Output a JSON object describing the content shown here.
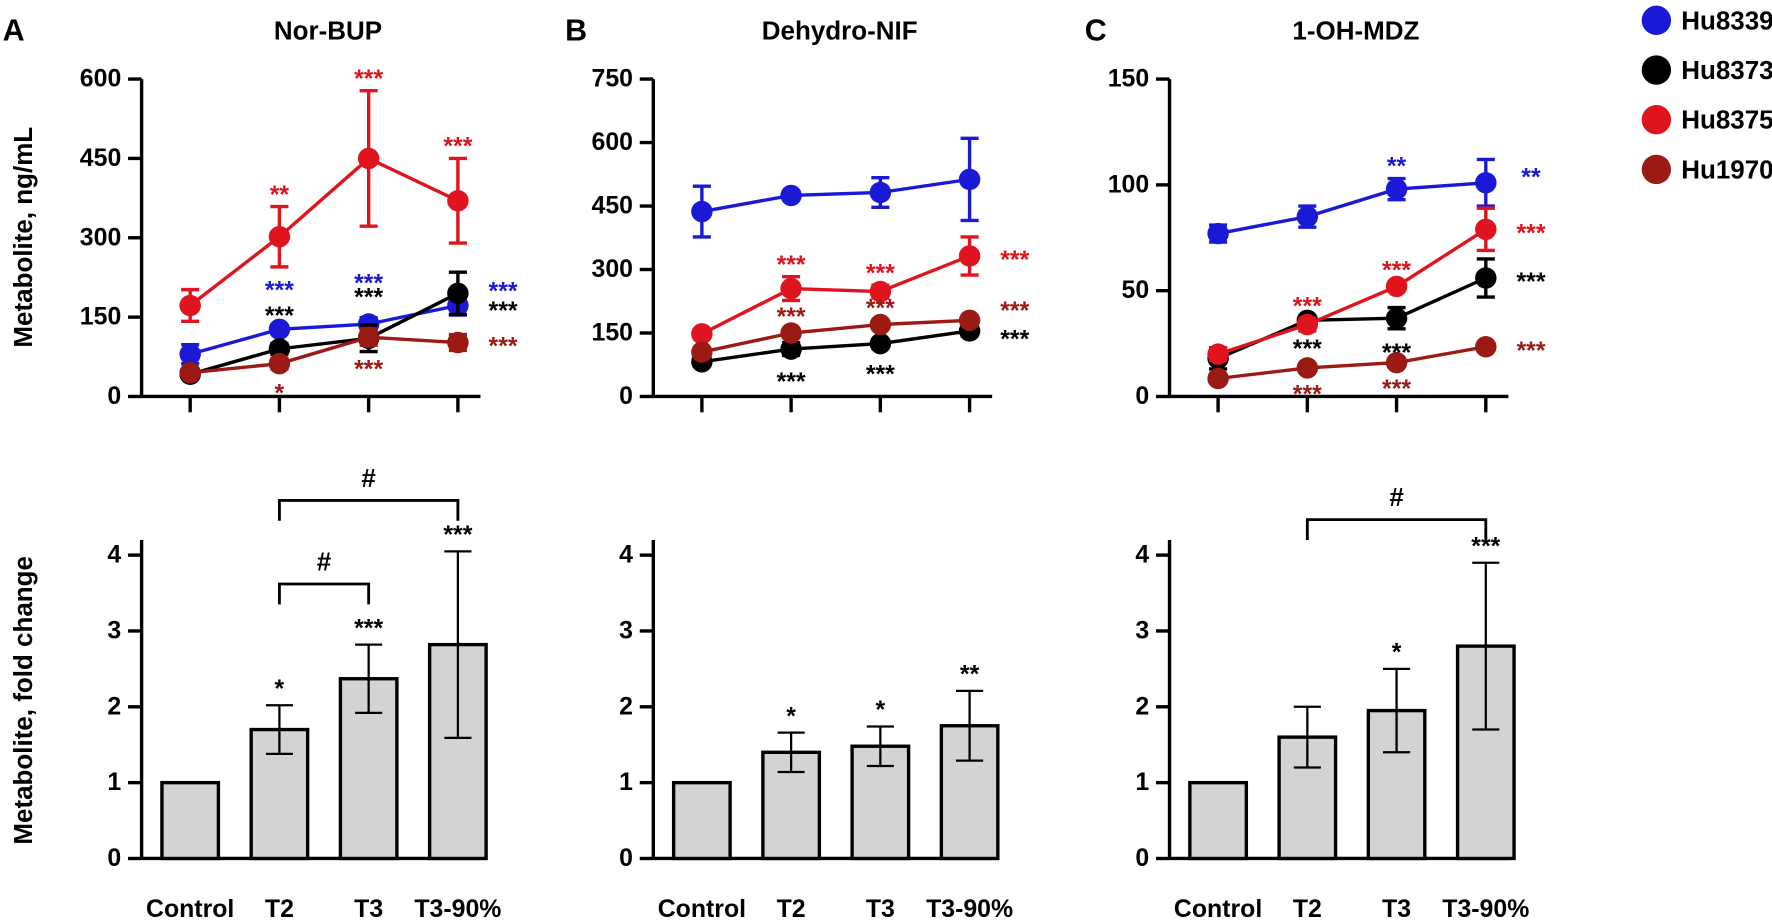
{
  "chart_data": [
    {
      "type": "line",
      "panel_label": "A",
      "title": "Nor-BUP",
      "y_label": "Metabolite, ng/mL",
      "categories": [
        null,
        null,
        null,
        null
      ],
      "ylim": [
        0,
        600
      ],
      "yticks": [
        0,
        150,
        300,
        450,
        600
      ],
      "series": [
        {
          "name": "Hu8339",
          "color": "#1a1ad6",
          "values": [
            80,
            127,
            137,
            172
          ],
          "error": [
            18,
            8,
            12,
            18
          ],
          "annotations": [
            null,
            "***",
            "***",
            "***"
          ]
        },
        {
          "name": "Hu8373",
          "color": "#000000",
          "values": [
            42,
            90,
            110,
            195
          ],
          "error": [
            5,
            10,
            25,
            40
          ],
          "annotations": [
            null,
            "***",
            "***",
            "***"
          ]
        },
        {
          "name": "Hu8375",
          "color": "#e0141e",
          "values": [
            172,
            302,
            450,
            370
          ],
          "error": [
            30,
            57,
            128,
            80
          ],
          "annotations": [
            null,
            "**",
            "***",
            "***"
          ]
        },
        {
          "name": "Hu1970",
          "color": "#9b1a14",
          "values": [
            45,
            62,
            112,
            102
          ],
          "error": [
            5,
            10,
            15,
            15
          ],
          "annotations": [
            null,
            "*",
            "***",
            "***"
          ]
        }
      ]
    },
    {
      "type": "bar",
      "y_label": "Metabolite, fold change",
      "categories": [
        "Control",
        "T2",
        "T3",
        "T3-90%"
      ],
      "ylim": [
        0,
        4.2
      ],
      "yticks": [
        0,
        1,
        2,
        3,
        4
      ],
      "values": [
        1,
        1.7,
        2.37,
        2.82
      ],
      "error": [
        0,
        0.32,
        0.45,
        1.23
      ],
      "color": "#d3d3d3",
      "annotations": [
        null,
        "*",
        "***",
        "***"
      ],
      "brackets": [
        {
          "between": [
            "T2",
            "T3"
          ],
          "label": "#"
        },
        {
          "between": [
            "T2",
            "T3-90%"
          ],
          "label": "#"
        }
      ]
    },
    {
      "type": "line",
      "panel_label": "B",
      "title": "Dehydro-NIF",
      "categories": [
        null,
        null,
        null,
        null
      ],
      "ylim": [
        0,
        750
      ],
      "yticks": [
        0,
        150,
        300,
        450,
        600,
        750
      ],
      "series": [
        {
          "color": "#1a1ad6",
          "values": [
            437,
            475,
            482,
            513
          ],
          "error": [
            60,
            10,
            35,
            97
          ],
          "annotations": [
            null,
            null,
            null,
            null
          ]
        },
        {
          "color": "#000000",
          "values": [
            82,
            112,
            125,
            155
          ],
          "error": [
            8,
            15,
            10,
            12
          ],
          "annotations": [
            null,
            "***",
            "***",
            "***"
          ]
        },
        {
          "color": "#e0141e",
          "values": [
            148,
            255,
            248,
            332
          ],
          "error": [
            10,
            28,
            15,
            45
          ],
          "annotations": [
            null,
            "***",
            "***",
            "***"
          ]
        },
        {
          "color": "#9b1a14",
          "values": [
            105,
            150,
            170,
            180
          ],
          "error": [
            8,
            10,
            10,
            10
          ],
          "annotations": [
            null,
            "***",
            "***",
            "***"
          ]
        }
      ]
    },
    {
      "type": "bar",
      "categories": [
        "Control",
        "T2",
        "T3",
        "T3-90%"
      ],
      "ylim": [
        0,
        4.2
      ],
      "yticks": [
        0,
        1,
        2,
        3,
        4
      ],
      "values": [
        1,
        1.4,
        1.48,
        1.75
      ],
      "error": [
        0,
        0.26,
        0.26,
        0.46
      ],
      "color": "#d3d3d3",
      "annotations": [
        null,
        "*",
        "*",
        "**"
      ]
    },
    {
      "type": "line",
      "panel_label": "C",
      "title": "1-OH-MDZ",
      "categories": [
        null,
        null,
        null,
        null
      ],
      "ylim": [
        0,
        150
      ],
      "yticks": [
        0,
        50,
        100,
        150
      ],
      "series": [
        {
          "color": "#1a1ad6",
          "values": [
            77,
            85,
            98,
            101
          ],
          "error": [
            4,
            5,
            5,
            11
          ],
          "annotations": [
            null,
            null,
            "**",
            "**"
          ]
        },
        {
          "color": "#000000",
          "values": [
            18,
            36,
            37,
            56
          ],
          "error": [
            5,
            2,
            5,
            9
          ],
          "annotations": [
            null,
            "***",
            "***",
            "***"
          ]
        },
        {
          "color": "#e0141e",
          "values": [
            20,
            34,
            52,
            79
          ],
          "error": [
            3,
            3,
            2,
            10
          ],
          "annotations": [
            null,
            "***",
            "***",
            "***"
          ]
        },
        {
          "color": "#9b1a14",
          "values": [
            8.5,
            13.5,
            16,
            23.5
          ],
          "error": [
            1,
            1,
            1,
            2
          ],
          "annotations": [
            null,
            "***",
            "***",
            "***"
          ]
        }
      ]
    },
    {
      "type": "bar",
      "categories": [
        "Control",
        "T2",
        "T3",
        "T3-90%"
      ],
      "ylim": [
        0,
        4.2
      ],
      "yticks": [
        0,
        1,
        2,
        3,
        4
      ],
      "values": [
        1,
        1.6,
        1.95,
        2.8
      ],
      "error": [
        0,
        0.4,
        0.55,
        1.1
      ],
      "color": "#d3d3d3",
      "annotations": [
        null,
        null,
        "*",
        "***"
      ],
      "brackets": [
        {
          "between": [
            "T2",
            "T3-90%"
          ],
          "label": "#"
        }
      ]
    }
  ]
}
